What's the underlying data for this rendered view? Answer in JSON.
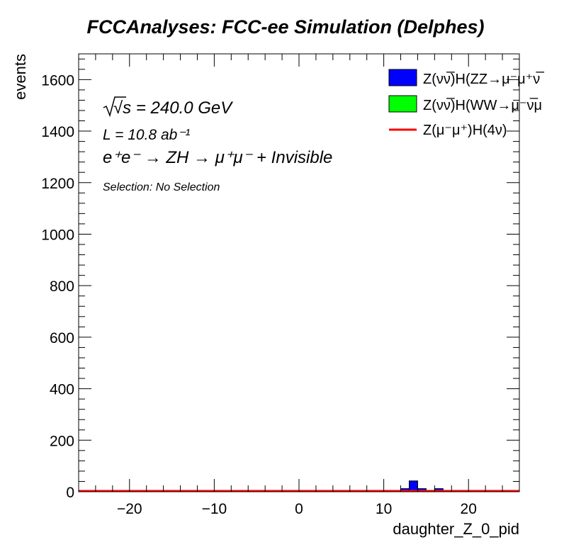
{
  "chart_data": {
    "type": "bar",
    "title": "FCCAnalyses: FCC-ee Simulation (Delphes)",
    "xlabel": "daughter_Z_0_pid",
    "ylabel": "events",
    "xlim": [
      -26,
      26
    ],
    "ylim": [
      0,
      1700
    ],
    "x_ticks": [
      -20,
      -10,
      0,
      10,
      20
    ],
    "x_tick_labels": [
      "−20",
      "−10",
      "0",
      "10",
      "20"
    ],
    "y_ticks": [
      0,
      200,
      400,
      600,
      800,
      1000,
      1200,
      1400,
      1600
    ],
    "y_tick_labels": [
      "0",
      "200",
      "400",
      "600",
      "800",
      "1000",
      "1200",
      "1400",
      "1600"
    ],
    "bin_width": 1,
    "series": [
      {
        "name": "Z(νν̅)H(ZZ→μ⁻μ⁺νν̅)",
        "legend_text": "Z(νν̅)H(ZZ→μ⁻μ⁺ν̅",
        "style": "fill",
        "color": "#0000ff",
        "bins": [
          {
            "x_low": 12,
            "x_high": 13,
            "value": 12
          },
          {
            "x_low": 13,
            "x_high": 14,
            "value": 42
          },
          {
            "x_low": 14,
            "x_high": 15,
            "value": 12
          },
          {
            "x_low": 16,
            "x_high": 17,
            "value": 12
          }
        ]
      },
      {
        "name": "Z(νν̅)H(WW→μ⁻ν̅μ⁺ν)",
        "legend_text": "Z(νν̅)H(WW→μ⁻ν̅μ",
        "style": "fill",
        "color": "#00ff00",
        "bins": []
      },
      {
        "name": "Z(μ⁻μ⁺)H(4ν)",
        "legend_text": "Z(μ⁻μ⁺)H(4ν)",
        "style": "line",
        "color": "#ff0000",
        "bins": []
      }
    ],
    "legend_position": "top-right",
    "annotations": [
      "√s = 240.0 GeV",
      "L = 10.8 ab⁻¹",
      "e⁺e⁻ → ZH → μ⁺μ⁻ + Invisible",
      "Selection: No Selection"
    ]
  }
}
